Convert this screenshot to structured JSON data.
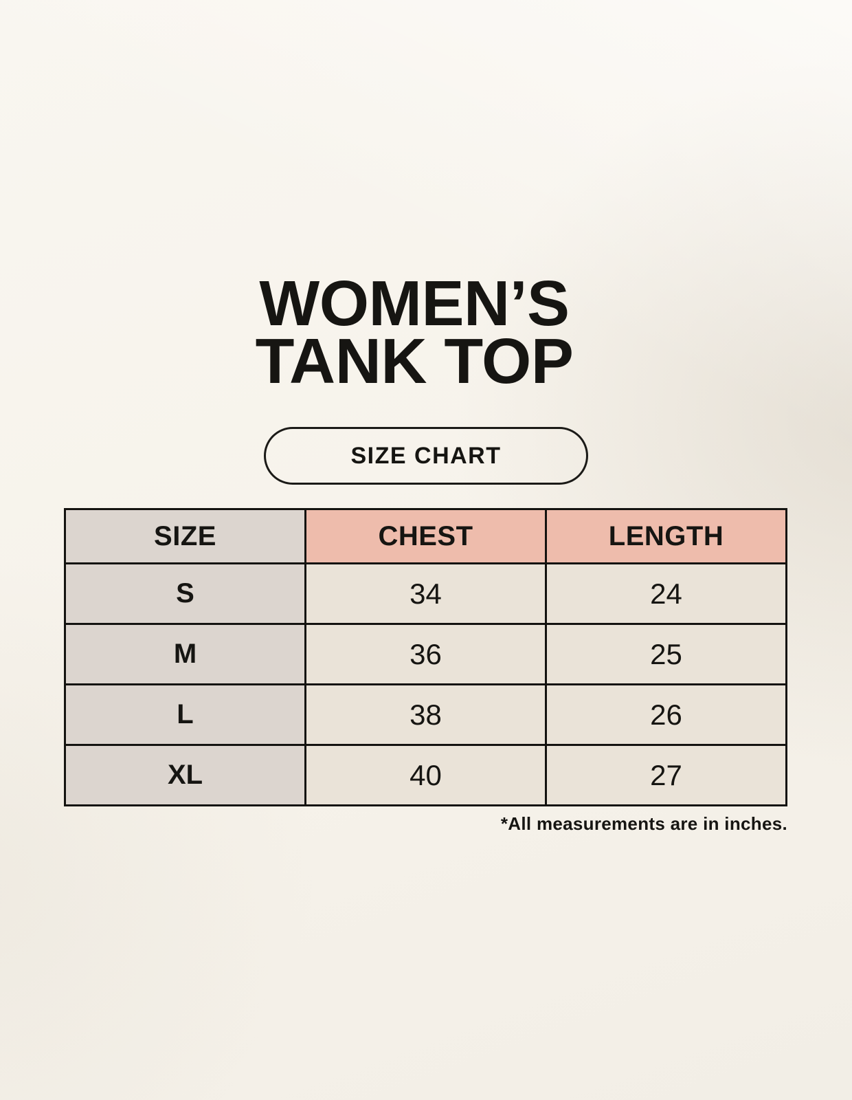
{
  "ui": {
    "title_line1": "WOMEN’S",
    "title_line2": "TANK TOP",
    "size_chart_button_label": "SIZE CHART",
    "footnote": "*All measurements are in inches."
  },
  "chart_data": {
    "type": "table",
    "title": "WOMEN’S TANK TOP",
    "subtitle": "SIZE CHART",
    "columns": [
      "SIZE",
      "CHEST",
      "LENGTH"
    ],
    "rows": [
      [
        "S",
        "34",
        "24"
      ],
      [
        "M",
        "36",
        "25"
      ],
      [
        "L",
        "38",
        "26"
      ],
      [
        "XL",
        "40",
        "27"
      ]
    ],
    "units": "inches",
    "note": "*All measurements are in inches."
  },
  "colors": {
    "page_bg": "#f7f3ec",
    "header_pink": "#eebcac",
    "size_col_gray": "#dcd5cf",
    "cell_cream": "#eae3d8",
    "ink": "#161512"
  }
}
